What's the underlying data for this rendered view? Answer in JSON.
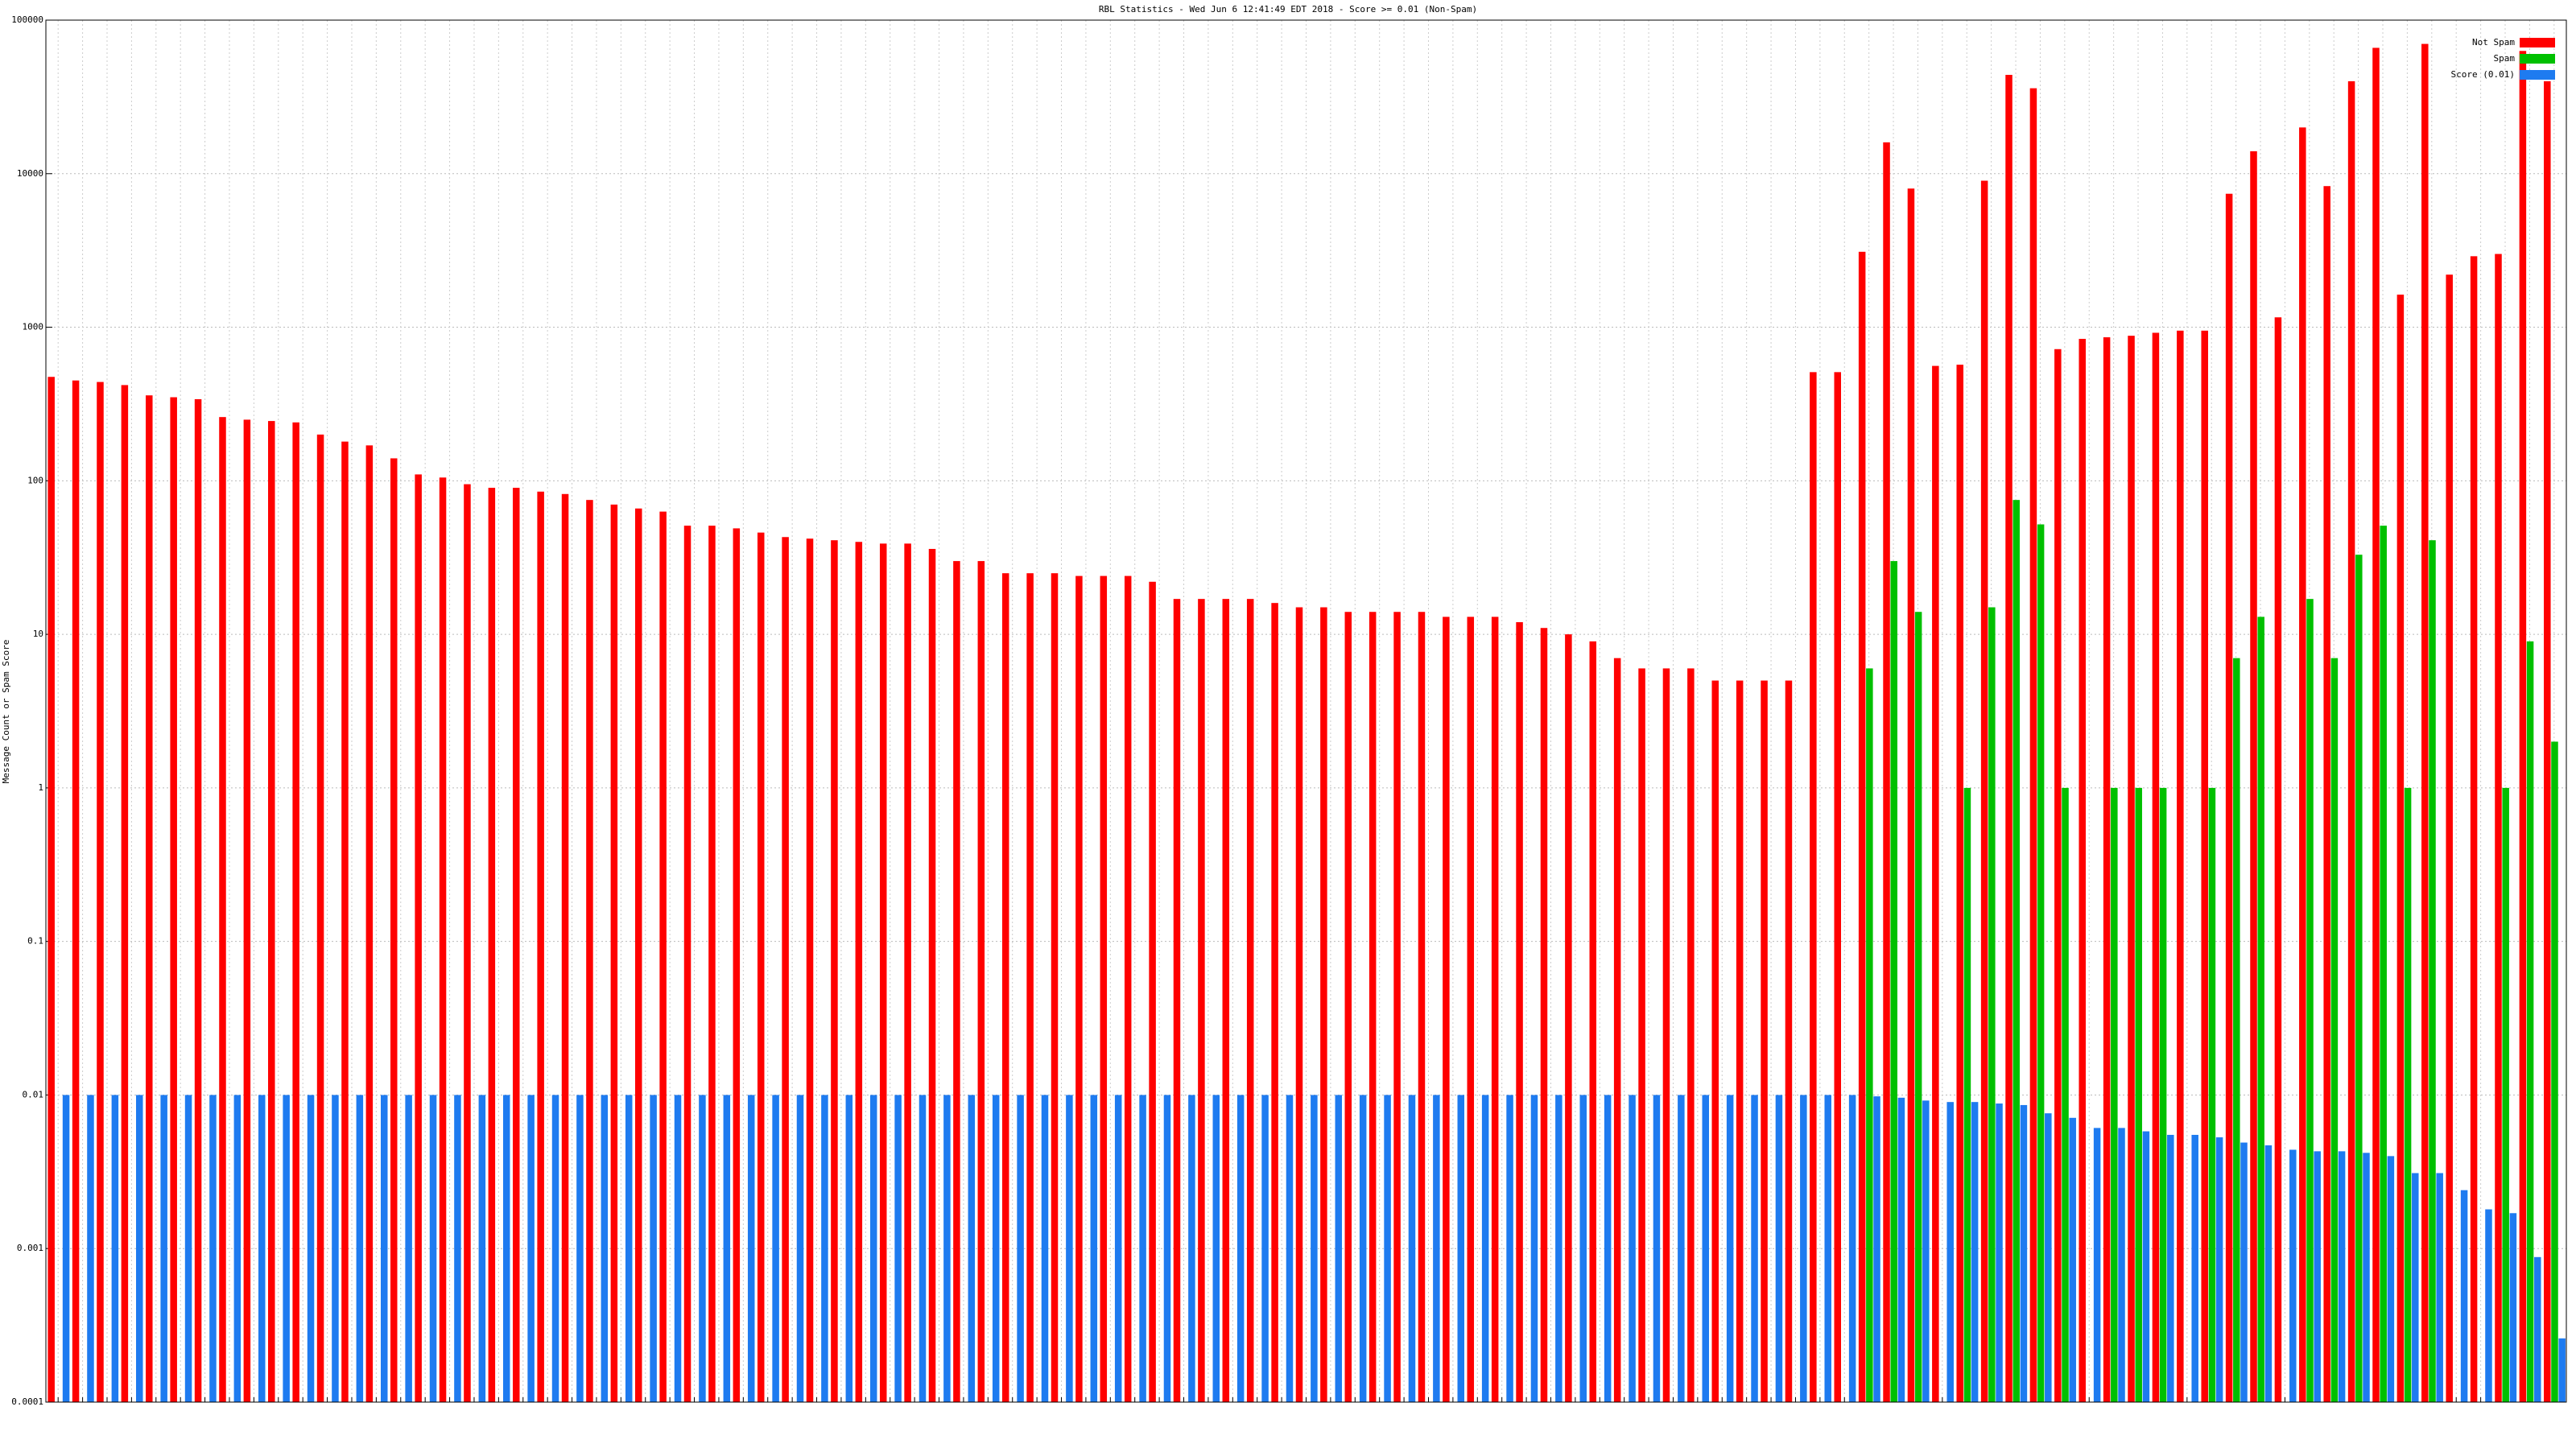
{
  "chart_data": {
    "type": "bar",
    "title": "RBL Statistics - Wed Jun  6 12:41:49 EDT 2018 - Score >= 0.01 (Non-Spam)",
    "y_label": "Message Count or Spam Score",
    "log_y": true,
    "grid": true,
    "legend": "upper right",
    "ylim": [
      0.0001,
      100000
    ],
    "yticks": [
      0.0001,
      0.001,
      0.01,
      0.1,
      1,
      10,
      100,
      1000,
      10000,
      100000
    ],
    "categories": [
      null,
      null,
      null,
      null,
      null,
      null,
      null,
      null,
      null,
      null,
      null,
      null,
      null,
      null,
      null,
      null,
      null,
      null,
      null,
      null,
      null,
      null,
      null,
      null,
      null,
      null,
      null,
      null,
      null,
      null,
      null,
      null,
      null,
      null,
      null,
      null,
      null,
      null,
      null,
      null,
      null,
      null,
      null,
      null,
      null,
      null,
      null,
      null,
      null,
      null,
      null,
      null,
      null,
      null,
      null,
      null,
      null,
      null,
      null,
      null,
      null,
      null,
      null,
      null,
      null,
      null,
      null,
      null,
      null,
      null,
      null,
      null,
      null,
      null,
      null,
      null,
      null,
      null,
      null,
      null,
      null,
      null,
      null,
      null,
      null,
      null,
      null,
      null,
      null,
      null,
      null,
      null,
      null,
      null,
      null,
      null,
      null,
      null,
      null,
      null,
      null,
      null,
      null
    ],
    "series": [
      {
        "name": "Not Spam",
        "color": "#ff0000",
        "values": [
          475,
          450,
          440,
          420,
          360,
          350,
          340,
          260,
          250,
          245,
          240,
          200,
          180,
          170,
          140,
          110,
          105,
          95,
          90,
          90,
          85,
          82,
          75,
          70,
          66,
          63,
          51,
          51,
          49,
          46,
          43,
          42,
          41,
          40,
          39,
          39,
          36,
          30,
          30,
          25,
          25,
          25,
          24,
          24,
          24,
          22,
          17,
          17,
          17,
          17,
          16,
          15,
          15,
          14,
          14,
          14,
          14,
          13,
          13,
          13,
          12,
          11,
          10,
          9,
          7,
          6,
          6,
          6,
          5,
          5,
          5,
          5,
          510,
          510,
          3100,
          16000,
          8000,
          560,
          570,
          9000,
          44000,
          36000,
          720,
          840,
          860,
          880,
          920,
          950,
          950,
          7400,
          14000,
          1160,
          20000,
          8300,
          40000,
          66000,
          1630,
          70000,
          2200,
          2900,
          3000,
          63000,
          40000
        ]
      },
      {
        "name": "Spam",
        "color": "#00c000",
        "values": [
          null,
          null,
          null,
          null,
          null,
          null,
          null,
          null,
          null,
          null,
          null,
          null,
          null,
          null,
          null,
          null,
          null,
          null,
          null,
          null,
          null,
          null,
          null,
          null,
          null,
          null,
          null,
          null,
          null,
          null,
          null,
          null,
          null,
          null,
          null,
          null,
          null,
          null,
          null,
          null,
          null,
          null,
          null,
          null,
          null,
          null,
          null,
          null,
          null,
          null,
          null,
          null,
          null,
          null,
          null,
          null,
          null,
          null,
          null,
          null,
          null,
          null,
          null,
          null,
          null,
          null,
          null,
          null,
          null,
          null,
          null,
          null,
          null,
          null,
          6,
          30,
          14,
          null,
          1,
          15,
          75,
          52,
          1,
          null,
          1,
          1,
          1,
          null,
          1,
          7,
          13,
          null,
          17,
          7,
          33,
          51,
          1,
          41,
          null,
          null,
          1,
          9,
          2
        ]
      },
      {
        "name": "Score (0.01)",
        "color": "#1e7bf0",
        "values": [
          0.01,
          0.01,
          0.01,
          0.01,
          0.01,
          0.01,
          0.01,
          0.01,
          0.01,
          0.01,
          0.01,
          0.01,
          0.01,
          0.01,
          0.01,
          0.01,
          0.01,
          0.01,
          0.01,
          0.01,
          0.01,
          0.01,
          0.01,
          0.01,
          0.01,
          0.01,
          0.01,
          0.01,
          0.01,
          0.01,
          0.01,
          0.01,
          0.01,
          0.01,
          0.01,
          0.01,
          0.01,
          0.01,
          0.01,
          0.01,
          0.01,
          0.01,
          0.01,
          0.01,
          0.01,
          0.01,
          0.01,
          0.01,
          0.01,
          0.01,
          0.01,
          0.01,
          0.01,
          0.01,
          0.01,
          0.01,
          0.01,
          0.01,
          0.01,
          0.01,
          0.01,
          0.01,
          0.01,
          0.01,
          0.01,
          0.01,
          0.01,
          0.01,
          0.01,
          0.01,
          0.01,
          0.01,
          0.01,
          0.01,
          0.0098,
          0.0096,
          0.0092,
          0.009,
          0.009,
          0.0088,
          0.0086,
          0.0076,
          0.0071,
          0.0061,
          0.0061,
          0.0058,
          0.0055,
          0.0055,
          0.0053,
          0.0049,
          0.0047,
          0.0044,
          0.0043,
          0.0043,
          0.0042,
          0.004,
          0.0031,
          0.0031,
          0.0024,
          0.0018,
          0.0017,
          0.00088,
          0.00026
        ]
      }
    ]
  }
}
